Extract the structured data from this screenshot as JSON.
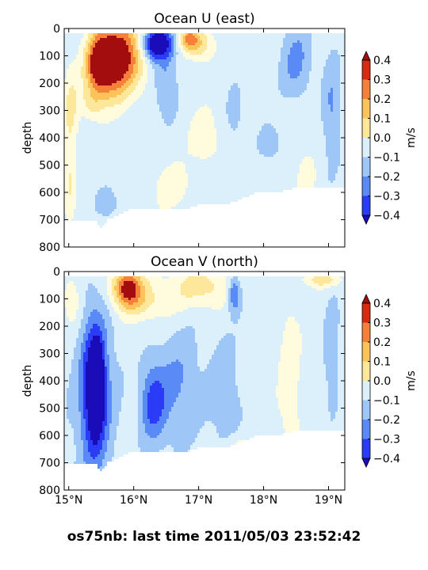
{
  "footer_title": "os75nb: last time 2011/05/03 23:52:42",
  "palette": {
    "levels": [
      -0.4,
      -0.3,
      -0.2,
      -0.1,
      0.0,
      0.1,
      0.2,
      0.3,
      0.4
    ],
    "bands": [
      "#2a3cf5",
      "#5a8af5",
      "#9ec6f7",
      "#dbf0fb",
      "#fffbdc",
      "#fde79a",
      "#fbc35a",
      "#f4803a",
      "#d62a12"
    ],
    "under": "#1a0cb8",
    "over": "#a30d0d",
    "nodata": "#ffffff"
  },
  "chart_data": [
    {
      "type": "heatmap",
      "title": "Ocean U (east)",
      "xlabel": "",
      "ylabel": "depth",
      "xlim": [
        14.93,
        19.25
      ],
      "ylim": [
        0,
        800
      ],
      "yticks": [
        "0",
        "100",
        "200",
        "300",
        "400",
        "500",
        "600",
        "700",
        "800"
      ],
      "xticks": [],
      "colorbar_label": "m/s",
      "colorbar_ticks": [
        "0.4",
        "0.3",
        "0.2",
        "0.1",
        "0.0",
        "−0.1",
        "−0.2",
        "−0.3",
        "−0.4"
      ],
      "blobs": [
        {
          "lat": 15.77,
          "depth": 90,
          "w": 0.55,
          "h": 200,
          "value": 0.55
        },
        {
          "lat": 15.45,
          "depth": 120,
          "w": 0.25,
          "h": 140,
          "value": 0.35
        },
        {
          "lat": 15.55,
          "depth": 190,
          "w": 0.45,
          "h": 140,
          "value": 0.2
        },
        {
          "lat": 15.03,
          "depth": 300,
          "w": 0.18,
          "h": 220,
          "value": 0.17
        },
        {
          "lat": 15.02,
          "depth": 560,
          "w": 0.12,
          "h": 200,
          "value": 0.15
        },
        {
          "lat": 15.35,
          "depth": 280,
          "w": 0.25,
          "h": 80,
          "value": 0.14
        },
        {
          "lat": 16.35,
          "depth": 55,
          "w": 0.35,
          "h": 90,
          "value": -0.55
        },
        {
          "lat": 16.5,
          "depth": 210,
          "w": 0.25,
          "h": 180,
          "value": -0.17
        },
        {
          "lat": 16.85,
          "depth": 40,
          "w": 0.22,
          "h": 60,
          "value": 0.35
        },
        {
          "lat": 17.05,
          "depth": 60,
          "w": 0.3,
          "h": 90,
          "value": 0.2
        },
        {
          "lat": 17.1,
          "depth": 400,
          "w": 0.35,
          "h": 150,
          "value": 0.12
        },
        {
          "lat": 16.6,
          "depth": 580,
          "w": 0.4,
          "h": 120,
          "value": 0.12
        },
        {
          "lat": 18.5,
          "depth": 120,
          "w": 0.35,
          "h": 200,
          "value": -0.18
        },
        {
          "lat": 19.05,
          "depth": 300,
          "w": 0.2,
          "h": 300,
          "value": -0.16
        },
        {
          "lat": 17.55,
          "depth": 300,
          "w": 0.15,
          "h": 120,
          "value": -0.14
        },
        {
          "lat": 18.1,
          "depth": 420,
          "w": 0.25,
          "h": 90,
          "value": -0.13
        },
        {
          "lat": 15.6,
          "depth": 640,
          "w": 0.25,
          "h": 80,
          "value": -0.13
        },
        {
          "lat": 18.65,
          "depth": 560,
          "w": 0.2,
          "h": 150,
          "value": 0.12
        }
      ]
    },
    {
      "type": "heatmap",
      "title": "Ocean V (north)",
      "xlabel": "",
      "ylabel": "depth",
      "xlim": [
        14.93,
        19.25
      ],
      "ylim": [
        0,
        800
      ],
      "yticks": [
        "0",
        "100",
        "200",
        "300",
        "400",
        "500",
        "600",
        "700",
        "800"
      ],
      "xticks": [
        "15°N",
        "16°N",
        "17°N",
        "18°N",
        "19°N"
      ],
      "colorbar_label": "m/s",
      "colorbar_ticks": [
        "0.4",
        "0.3",
        "0.2",
        "0.1",
        "0.0",
        "−0.1",
        "−0.2",
        "−0.3",
        "−0.4"
      ],
      "blobs": [
        {
          "lat": 15.9,
          "depth": 60,
          "w": 0.35,
          "h": 110,
          "value": 0.5
        },
        {
          "lat": 16.25,
          "depth": 110,
          "w": 0.6,
          "h": 110,
          "value": 0.15
        },
        {
          "lat": 17.05,
          "depth": 55,
          "w": 0.7,
          "h": 110,
          "value": 0.2
        },
        {
          "lat": 18.9,
          "depth": 30,
          "w": 0.4,
          "h": 40,
          "value": 0.22
        },
        {
          "lat": 15.05,
          "depth": 110,
          "w": 0.2,
          "h": 140,
          "value": 0.15
        },
        {
          "lat": 15.4,
          "depth": 430,
          "w": 0.25,
          "h": 340,
          "value": -0.4
        },
        {
          "lat": 15.45,
          "depth": 410,
          "w": 0.1,
          "h": 160,
          "value": -0.55
        },
        {
          "lat": 15.4,
          "depth": 460,
          "w": 0.5,
          "h": 520,
          "value": -0.18
        },
        {
          "lat": 16.3,
          "depth": 480,
          "w": 0.3,
          "h": 220,
          "value": -0.28
        },
        {
          "lat": 16.7,
          "depth": 420,
          "w": 0.5,
          "h": 300,
          "value": -0.16
        },
        {
          "lat": 17.55,
          "depth": 80,
          "w": 0.15,
          "h": 100,
          "value": -0.3
        },
        {
          "lat": 17.4,
          "depth": 450,
          "w": 0.35,
          "h": 300,
          "value": -0.13
        },
        {
          "lat": 18.4,
          "depth": 400,
          "w": 0.25,
          "h": 480,
          "value": 0.12
        },
        {
          "lat": 19.05,
          "depth": 300,
          "w": 0.18,
          "h": 300,
          "value": -0.13
        },
        {
          "lat": 17.6,
          "depth": 660,
          "w": 0.3,
          "h": 80,
          "value": 0.15
        }
      ]
    }
  ]
}
